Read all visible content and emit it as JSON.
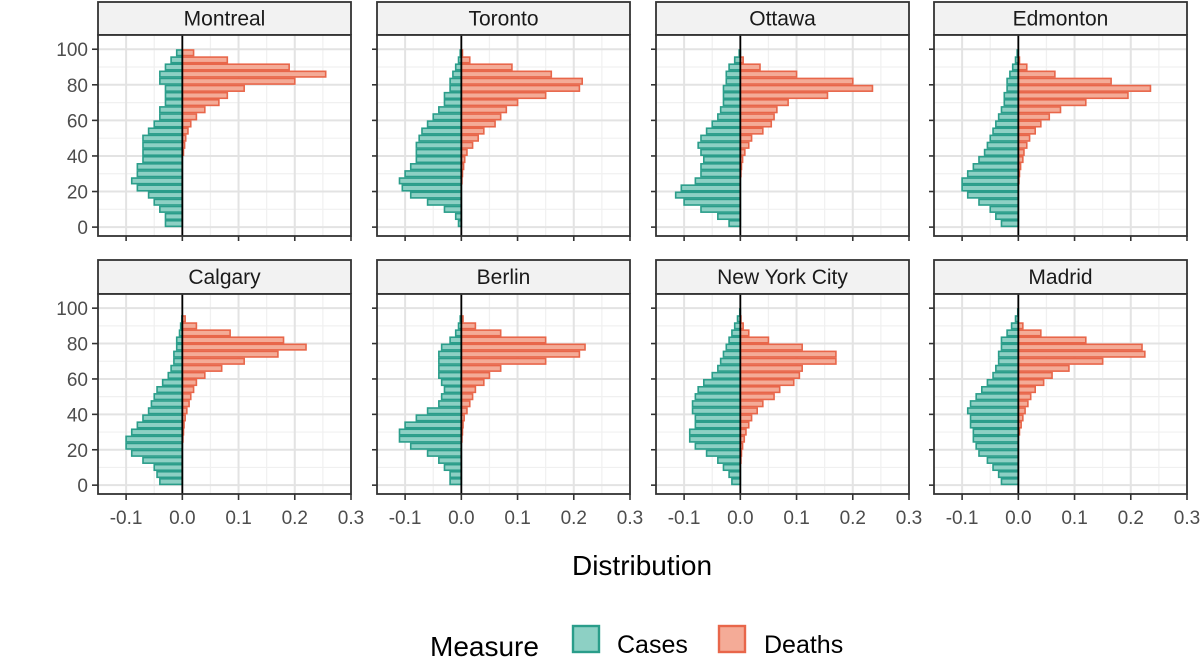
{
  "chart_data": {
    "type": "bar",
    "orientation": "horizontal-population-pyramid",
    "facet_layout": {
      "ncol": 4,
      "nrow": 2
    },
    "xlabel": "Distribution",
    "x_ticks": [
      "-0.1",
      "0.0",
      "0.1",
      "0.2",
      "0.3"
    ],
    "xlim": [
      -0.15,
      0.3
    ],
    "y_ticks": [
      "0",
      "20",
      "40",
      "60",
      "80",
      "100"
    ],
    "ylim": [
      -5,
      108
    ],
    "age_bin_width": 4,
    "age_bin_starts": [
      0,
      4,
      8,
      12,
      16,
      20,
      24,
      28,
      32,
      36,
      40,
      44,
      48,
      52,
      56,
      60,
      64,
      68,
      72,
      76,
      80,
      84,
      88,
      92,
      96,
      100
    ],
    "grid": true,
    "legend": {
      "title": "Measure",
      "position": "bottom",
      "items": [
        {
          "label": "Cases",
          "fill": "#8dd0c4",
          "stroke": "#2a9d8a"
        },
        {
          "label": "Deaths",
          "fill": "#f4ab97",
          "stroke": "#e8664a"
        }
      ]
    },
    "panels": [
      {
        "name": "Montreal",
        "cases": [
          0.03,
          0.03,
          0.04,
          0.05,
          0.06,
          0.08,
          0.09,
          0.08,
          0.08,
          0.07,
          0.07,
          0.07,
          0.07,
          0.06,
          0.05,
          0.04,
          0.04,
          0.03,
          0.03,
          0.03,
          0.04,
          0.04,
          0.03,
          0.02,
          0.01,
          0.0
        ],
        "deaths": [
          0.0,
          0.0,
          0.0,
          0.0,
          0.0,
          0.0,
          0.0,
          0.0,
          0.0,
          0.0,
          0.002,
          0.004,
          0.006,
          0.01,
          0.015,
          0.025,
          0.04,
          0.065,
          0.08,
          0.11,
          0.2,
          0.255,
          0.19,
          0.08,
          0.02,
          0.0
        ]
      },
      {
        "name": "Toronto",
        "cases": [
          0.005,
          0.01,
          0.03,
          0.06,
          0.09,
          0.105,
          0.11,
          0.1,
          0.09,
          0.08,
          0.08,
          0.08,
          0.075,
          0.07,
          0.06,
          0.05,
          0.04,
          0.03,
          0.03,
          0.02,
          0.02,
          0.015,
          0.01,
          0.005,
          0.002,
          0.0
        ],
        "deaths": [
          0.0,
          0.0,
          0.0,
          0.0,
          0.0,
          0.0,
          0.001,
          0.002,
          0.004,
          0.006,
          0.01,
          0.02,
          0.03,
          0.04,
          0.06,
          0.07,
          0.08,
          0.1,
          0.15,
          0.21,
          0.215,
          0.16,
          0.09,
          0.015,
          0.002,
          0.0
        ]
      },
      {
        "name": "Ottawa",
        "cases": [
          0.02,
          0.04,
          0.07,
          0.1,
          0.115,
          0.105,
          0.08,
          0.07,
          0.07,
          0.065,
          0.07,
          0.075,
          0.07,
          0.06,
          0.05,
          0.04,
          0.035,
          0.03,
          0.03,
          0.03,
          0.025,
          0.025,
          0.02,
          0.01,
          0.002,
          0.0
        ],
        "deaths": [
          0.0,
          0.0,
          0.0,
          0.0,
          0.0,
          0.0,
          0.0,
          0.001,
          0.002,
          0.004,
          0.008,
          0.015,
          0.02,
          0.04,
          0.055,
          0.06,
          0.065,
          0.085,
          0.155,
          0.235,
          0.2,
          0.1,
          0.035,
          0.005,
          0.0,
          0.0
        ]
      },
      {
        "name": "Edmonton",
        "cases": [
          0.03,
          0.04,
          0.05,
          0.07,
          0.09,
          0.1,
          0.1,
          0.09,
          0.08,
          0.07,
          0.06,
          0.055,
          0.05,
          0.045,
          0.04,
          0.035,
          0.03,
          0.025,
          0.025,
          0.02,
          0.02,
          0.015,
          0.01,
          0.005,
          0.002,
          0.0
        ],
        "deaths": [
          0.0,
          0.0,
          0.0,
          0.0,
          0.0,
          0.0,
          0.001,
          0.002,
          0.004,
          0.008,
          0.01,
          0.015,
          0.02,
          0.03,
          0.04,
          0.055,
          0.075,
          0.12,
          0.195,
          0.235,
          0.165,
          0.065,
          0.015,
          0.002,
          0.0,
          0.0
        ]
      },
      {
        "name": "Calgary",
        "cases": [
          0.04,
          0.045,
          0.05,
          0.07,
          0.09,
          0.1,
          0.1,
          0.09,
          0.08,
          0.07,
          0.06,
          0.055,
          0.05,
          0.045,
          0.035,
          0.025,
          0.02,
          0.015,
          0.015,
          0.01,
          0.01,
          0.005,
          0.003,
          0.001,
          0.0,
          0.0
        ],
        "deaths": [
          0.0,
          0.0,
          0.0,
          0.0,
          0.0,
          0.0,
          0.001,
          0.002,
          0.003,
          0.005,
          0.008,
          0.012,
          0.015,
          0.02,
          0.025,
          0.04,
          0.07,
          0.11,
          0.17,
          0.22,
          0.18,
          0.085,
          0.025,
          0.005,
          0.0,
          0.0
        ]
      },
      {
        "name": "Berlin",
        "cases": [
          0.02,
          0.02,
          0.03,
          0.04,
          0.06,
          0.09,
          0.11,
          0.11,
          0.1,
          0.08,
          0.06,
          0.04,
          0.035,
          0.03,
          0.035,
          0.04,
          0.04,
          0.04,
          0.04,
          0.035,
          0.02,
          0.01,
          0.005,
          0.002,
          0.0,
          0.0
        ],
        "deaths": [
          0.0,
          0.0,
          0.0,
          0.0,
          0.0,
          0.0,
          0.001,
          0.002,
          0.003,
          0.005,
          0.01,
          0.015,
          0.02,
          0.025,
          0.04,
          0.05,
          0.07,
          0.15,
          0.21,
          0.22,
          0.15,
          0.07,
          0.025,
          0.003,
          0.0,
          0.0
        ]
      },
      {
        "name": "New York City",
        "cases": [
          0.015,
          0.02,
          0.03,
          0.04,
          0.06,
          0.08,
          0.09,
          0.09,
          0.08,
          0.08,
          0.085,
          0.085,
          0.08,
          0.075,
          0.065,
          0.05,
          0.04,
          0.035,
          0.03,
          0.025,
          0.02,
          0.015,
          0.01,
          0.005,
          0.001,
          0.0
        ],
        "deaths": [
          0.0,
          0.0,
          0.0,
          0.001,
          0.002,
          0.004,
          0.007,
          0.01,
          0.015,
          0.02,
          0.03,
          0.04,
          0.06,
          0.07,
          0.095,
          0.105,
          0.11,
          0.17,
          0.17,
          0.11,
          0.05,
          0.015,
          0.005,
          0.001,
          0.0,
          0.0
        ]
      },
      {
        "name": "Madrid",
        "cases": [
          0.03,
          0.035,
          0.045,
          0.055,
          0.07,
          0.075,
          0.08,
          0.08,
          0.085,
          0.085,
          0.09,
          0.085,
          0.075,
          0.065,
          0.055,
          0.045,
          0.04,
          0.035,
          0.035,
          0.03,
          0.03,
          0.02,
          0.012,
          0.005,
          0.001,
          0.0
        ],
        "deaths": [
          0.0,
          0.0,
          0.0,
          0.0,
          0.0,
          0.0,
          0.0,
          0.002,
          0.005,
          0.008,
          0.012,
          0.017,
          0.022,
          0.03,
          0.045,
          0.06,
          0.09,
          0.15,
          0.225,
          0.22,
          0.12,
          0.04,
          0.008,
          0.0,
          0.0,
          0.0
        ]
      }
    ]
  }
}
